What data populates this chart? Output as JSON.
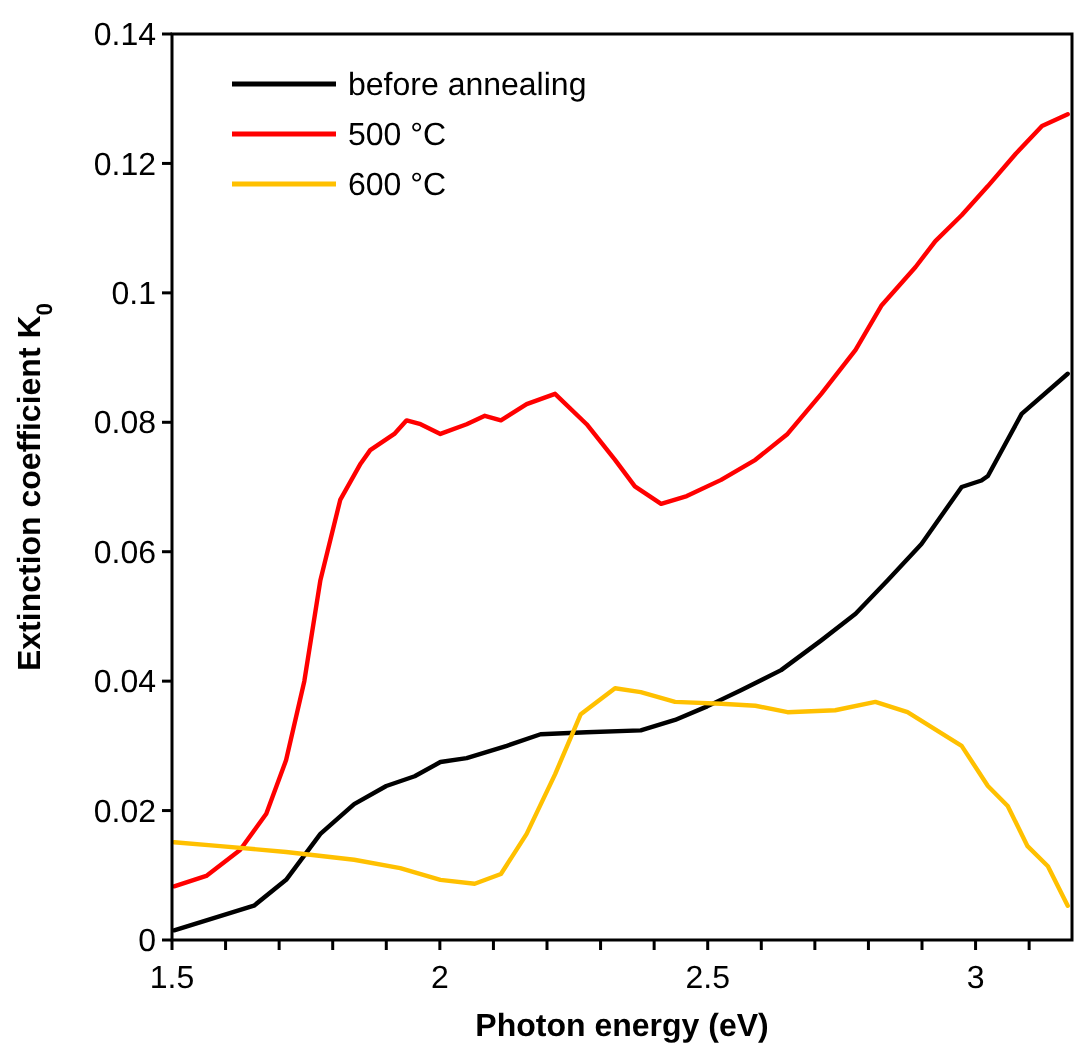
{
  "chart_data": {
    "type": "line",
    "xlabel": "Photon energy (eV)",
    "ylabel": "Extinction coefficient K$_{0}$",
    "xlim": [
      1.5,
      3.18
    ],
    "xticks": [
      1.5,
      {
        "value": 1.6,
        "label": null
      },
      {
        "value": 1.7,
        "label": null
      },
      {
        "value": 1.8,
        "label": null
      },
      {
        "value": 1.9,
        "label": null
      },
      2,
      {
        "value": 2.1,
        "label": null
      },
      {
        "value": 2.2,
        "label": null
      },
      {
        "value": 2.3,
        "label": null
      },
      {
        "value": 2.4,
        "label": null
      },
      2.5,
      {
        "value": 2.6,
        "label": null
      },
      {
        "value": 2.7,
        "label": null
      },
      {
        "value": 2.8,
        "label": null
      },
      {
        "value": 2.9,
        "label": null
      },
      3,
      {
        "value": 3.1,
        "label": null
      }
    ],
    "ylim": [
      0,
      0.14
    ],
    "yticks": [
      0,
      0.02,
      0.04,
      0.06,
      0.08,
      0.1,
      0.12,
      0.14
    ],
    "grid": false,
    "legend": "top left",
    "line_style": "solid",
    "series": [
      {
        "name": "before annealing",
        "color": "#000000",
        "x": [
          1.504,
          1.653,
          1.713,
          1.777,
          1.84,
          1.9,
          1.953,
          2.001,
          2.05,
          2.125,
          2.188,
          2.274,
          2.375,
          2.439,
          2.499,
          2.562,
          2.637,
          2.712,
          2.776,
          2.836,
          2.899,
          2.974,
          3.011,
          3.023,
          3.086,
          3.172
        ],
        "values": [
          0.0015,
          0.0053,
          0.0093,
          0.0164,
          0.021,
          0.0238,
          0.0253,
          0.0275,
          0.0281,
          0.03,
          0.0318,
          0.0321,
          0.0324,
          0.034,
          0.0361,
          0.0386,
          0.0417,
          0.0463,
          0.0504,
          0.0556,
          0.0612,
          0.07,
          0.071,
          0.0717,
          0.0813,
          0.0875
        ]
      },
      {
        "name": "500 °C",
        "color": "#ff0000",
        "x": [
          1.504,
          1.564,
          1.627,
          1.676,
          1.713,
          1.747,
          1.777,
          1.814,
          1.852,
          1.87,
          1.915,
          1.938,
          1.964,
          2.001,
          2.05,
          2.084,
          2.114,
          2.162,
          2.215,
          2.274,
          2.327,
          2.364,
          2.413,
          2.461,
          2.525,
          2.589,
          2.649,
          2.712,
          2.776,
          2.824,
          2.888,
          2.925,
          2.974,
          3.023,
          3.075,
          3.124,
          3.172
        ],
        "values": [
          0.0083,
          0.0099,
          0.0139,
          0.0195,
          0.0278,
          0.04,
          0.0556,
          0.068,
          0.0736,
          0.0757,
          0.0782,
          0.0803,
          0.0797,
          0.0782,
          0.0797,
          0.081,
          0.0803,
          0.0828,
          0.0844,
          0.0797,
          0.0742,
          0.0701,
          0.0674,
          0.0686,
          0.0711,
          0.0742,
          0.0782,
          0.0844,
          0.0912,
          0.098,
          0.104,
          0.108,
          0.112,
          0.1165,
          0.1215,
          0.1258,
          0.1276
        ]
      },
      {
        "name": "600 °C",
        "color": "#ffc000",
        "x": [
          1.504,
          1.59,
          1.713,
          1.84,
          1.926,
          2.001,
          2.065,
          2.114,
          2.162,
          2.215,
          2.263,
          2.327,
          2.375,
          2.439,
          2.525,
          2.589,
          2.649,
          2.738,
          2.813,
          2.873,
          2.974,
          3.023,
          3.06,
          3.097,
          3.135,
          3.172
        ],
        "values": [
          0.0151,
          0.0145,
          0.0136,
          0.0124,
          0.0111,
          0.0093,
          0.0087,
          0.0102,
          0.0164,
          0.0256,
          0.0349,
          0.0389,
          0.0383,
          0.0368,
          0.0365,
          0.0362,
          0.0352,
          0.0355,
          0.0368,
          0.0352,
          0.03,
          0.0238,
          0.0207,
          0.0145,
          0.0114,
          0.0053
        ]
      }
    ]
  }
}
